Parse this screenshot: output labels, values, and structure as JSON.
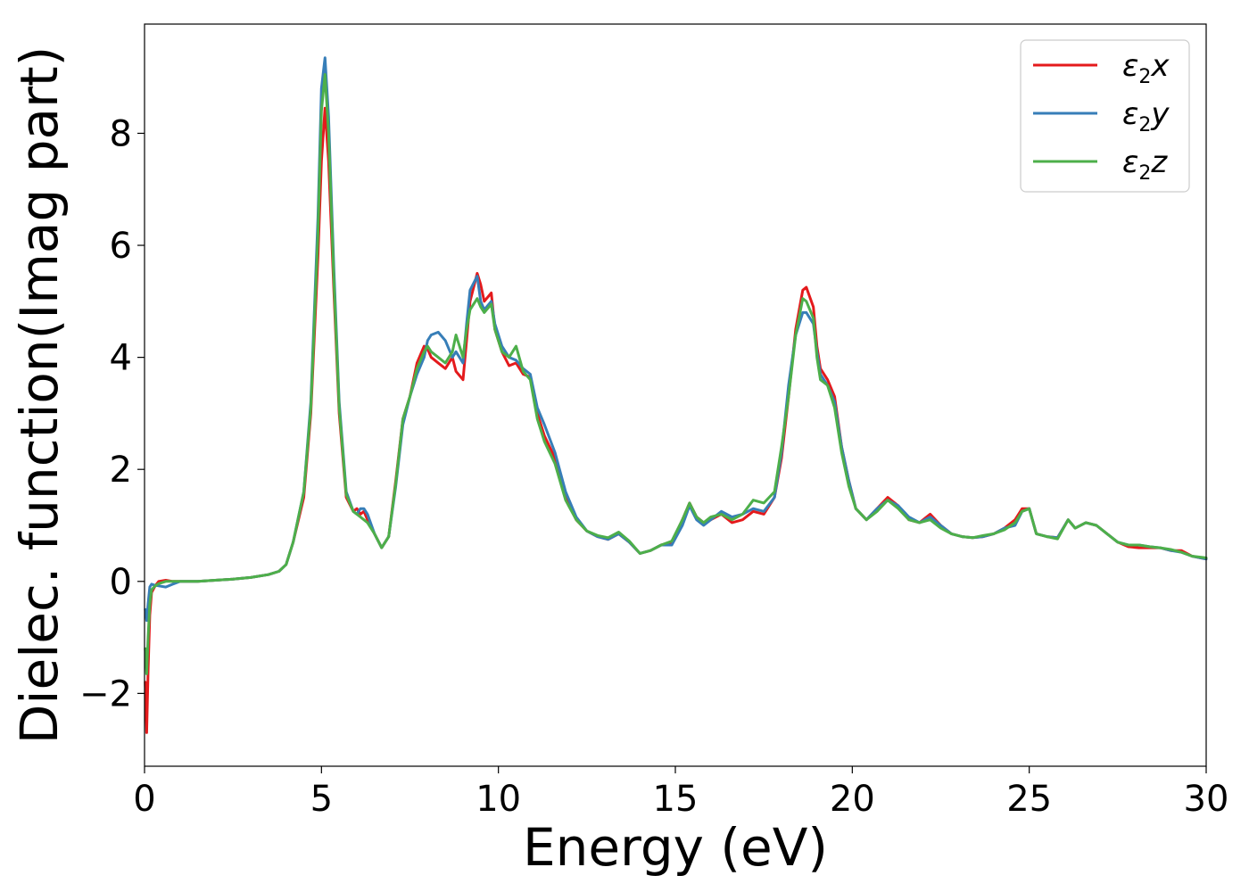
{
  "chart_data": {
    "type": "line",
    "title": "",
    "xlabel": "Energy (eV)",
    "ylabel": "Dielec. function(Imag part)",
    "xlim": [
      0,
      30
    ],
    "ylim": [
      -3.3,
      9.95
    ],
    "xticks": [
      0,
      5,
      10,
      15,
      20,
      25,
      30
    ],
    "xtick_labels": [
      "0",
      "5",
      "10",
      "15",
      "20",
      "25",
      "30"
    ],
    "yticks": [
      -2,
      0,
      2,
      4,
      6,
      8
    ],
    "ytick_labels": [
      "−2",
      "0",
      "2",
      "4",
      "6",
      "8"
    ],
    "grid": false,
    "legend_position": "top-right",
    "series": [
      {
        "name": "ε₂x",
        "legend": {
          "symbol": "ε",
          "sub": "2",
          "suffix": "x"
        },
        "color": "#e41a1c",
        "x": [
          0.02,
          0.06,
          0.1,
          0.15,
          0.2,
          0.3,
          0.4,
          0.6,
          0.8,
          1.0,
          1.5,
          2.0,
          2.5,
          3.0,
          3.5,
          3.8,
          4.0,
          4.2,
          4.5,
          4.7,
          4.9,
          5.0,
          5.1,
          5.2,
          5.35,
          5.5,
          5.7,
          5.9,
          6.0,
          6.1,
          6.2,
          6.3,
          6.5,
          6.7,
          6.9,
          7.1,
          7.3,
          7.5,
          7.7,
          7.9,
          8.0,
          8.1,
          8.3,
          8.5,
          8.7,
          8.8,
          9.0,
          9.1,
          9.2,
          9.4,
          9.5,
          9.6,
          9.8,
          9.9,
          10.1,
          10.3,
          10.5,
          10.7,
          10.9,
          11.1,
          11.3,
          11.6,
          11.9,
          12.2,
          12.5,
          12.8,
          13.1,
          13.4,
          13.7,
          14.0,
          14.3,
          14.6,
          14.9,
          15.2,
          15.4,
          15.6,
          15.8,
          16.0,
          16.3,
          16.6,
          16.9,
          17.2,
          17.5,
          17.8,
          18.0,
          18.2,
          18.4,
          18.6,
          18.7,
          18.9,
          19.0,
          19.1,
          19.3,
          19.5,
          19.7,
          19.9,
          20.1,
          20.4,
          20.7,
          21.0,
          21.3,
          21.6,
          21.9,
          22.2,
          22.5,
          22.8,
          23.1,
          23.4,
          23.7,
          24.0,
          24.3,
          24.6,
          24.8,
          25.0,
          25.2,
          25.5,
          25.8,
          26.1,
          26.3,
          26.6,
          26.9,
          27.2,
          27.5,
          27.8,
          28.1,
          28.4,
          28.7,
          29.0,
          29.3,
          29.6,
          30.0
        ],
        "values": [
          -1.8,
          -2.7,
          -1.6,
          -0.6,
          -0.2,
          -0.08,
          0.0,
          0.02,
          0.0,
          0.0,
          0.0,
          0.02,
          0.04,
          0.07,
          0.12,
          0.18,
          0.3,
          0.7,
          1.5,
          3.0,
          5.8,
          7.5,
          8.45,
          7.5,
          5.2,
          3.0,
          1.5,
          1.25,
          1.3,
          1.2,
          1.25,
          1.1,
          0.85,
          0.6,
          0.8,
          1.8,
          2.9,
          3.3,
          3.9,
          4.2,
          4.15,
          4.0,
          3.9,
          3.8,
          4.0,
          3.75,
          3.6,
          4.3,
          5.0,
          5.5,
          5.3,
          5.0,
          5.15,
          4.5,
          4.1,
          3.85,
          3.9,
          3.7,
          3.65,
          3.0,
          2.6,
          2.2,
          1.5,
          1.1,
          0.9,
          0.8,
          0.75,
          0.85,
          0.7,
          0.5,
          0.55,
          0.65,
          0.7,
          1.1,
          1.4,
          1.15,
          1.05,
          1.1,
          1.2,
          1.05,
          1.1,
          1.25,
          1.2,
          1.5,
          2.2,
          3.3,
          4.5,
          5.2,
          5.25,
          4.9,
          4.2,
          3.8,
          3.6,
          3.3,
          2.4,
          1.8,
          1.3,
          1.1,
          1.3,
          1.5,
          1.35,
          1.1,
          1.05,
          1.2,
          1.0,
          0.85,
          0.8,
          0.78,
          0.8,
          0.85,
          0.95,
          1.1,
          1.3,
          1.3,
          0.85,
          0.8,
          0.78,
          1.1,
          0.95,
          1.05,
          1.0,
          0.85,
          0.7,
          0.62,
          0.6,
          0.6,
          0.6,
          0.55,
          0.55,
          0.45,
          0.4
        ]
      },
      {
        "name": "ε₂y",
        "legend": {
          "symbol": "ε",
          "sub": "2",
          "suffix": "y"
        },
        "color": "#377eb8",
        "x": [
          0.02,
          0.06,
          0.1,
          0.15,
          0.2,
          0.3,
          0.4,
          0.6,
          0.8,
          1.0,
          1.5,
          2.0,
          2.5,
          3.0,
          3.5,
          3.8,
          4.0,
          4.2,
          4.5,
          4.7,
          4.9,
          5.0,
          5.1,
          5.2,
          5.35,
          5.5,
          5.7,
          5.9,
          6.0,
          6.1,
          6.2,
          6.3,
          6.5,
          6.7,
          6.9,
          7.1,
          7.3,
          7.5,
          7.7,
          7.9,
          8.0,
          8.1,
          8.3,
          8.5,
          8.7,
          8.8,
          9.0,
          9.1,
          9.2,
          9.4,
          9.5,
          9.6,
          9.8,
          9.9,
          10.1,
          10.3,
          10.5,
          10.7,
          10.9,
          11.1,
          11.3,
          11.6,
          11.9,
          12.2,
          12.5,
          12.8,
          13.1,
          13.4,
          13.7,
          14.0,
          14.3,
          14.6,
          14.9,
          15.2,
          15.4,
          15.6,
          15.8,
          16.0,
          16.3,
          16.6,
          16.9,
          17.2,
          17.5,
          17.8,
          18.0,
          18.2,
          18.4,
          18.6,
          18.7,
          18.9,
          19.0,
          19.1,
          19.3,
          19.5,
          19.7,
          19.9,
          20.1,
          20.4,
          20.7,
          21.0,
          21.3,
          21.6,
          21.9,
          22.2,
          22.5,
          22.8,
          23.1,
          23.4,
          23.7,
          24.0,
          24.3,
          24.6,
          24.8,
          25.0,
          25.2,
          25.5,
          25.8,
          26.1,
          26.3,
          26.6,
          26.9,
          27.2,
          27.5,
          27.8,
          28.1,
          28.4,
          28.7,
          29.0,
          29.3,
          29.6,
          30.0
        ],
        "values": [
          -0.5,
          -0.7,
          -0.4,
          -0.1,
          -0.05,
          -0.07,
          -0.08,
          -0.1,
          -0.05,
          0.0,
          0.0,
          0.02,
          0.04,
          0.07,
          0.12,
          0.18,
          0.3,
          0.7,
          1.6,
          3.2,
          6.5,
          8.8,
          9.35,
          8.3,
          5.6,
          3.2,
          1.6,
          1.25,
          1.2,
          1.3,
          1.3,
          1.2,
          0.85,
          0.6,
          0.8,
          1.7,
          2.8,
          3.3,
          3.7,
          4.0,
          4.3,
          4.4,
          4.45,
          4.3,
          4.0,
          4.1,
          3.9,
          4.6,
          5.2,
          5.45,
          5.0,
          4.85,
          5.0,
          4.6,
          4.2,
          4.0,
          3.95,
          3.8,
          3.7,
          3.1,
          2.8,
          2.3,
          1.6,
          1.15,
          0.9,
          0.8,
          0.75,
          0.85,
          0.7,
          0.5,
          0.55,
          0.65,
          0.65,
          1.0,
          1.35,
          1.1,
          1.0,
          1.1,
          1.25,
          1.15,
          1.2,
          1.3,
          1.25,
          1.5,
          2.3,
          3.5,
          4.4,
          4.8,
          4.8,
          4.6,
          4.1,
          3.7,
          3.5,
          3.2,
          2.4,
          1.8,
          1.3,
          1.1,
          1.3,
          1.45,
          1.35,
          1.15,
          1.05,
          1.15,
          1.0,
          0.85,
          0.8,
          0.78,
          0.8,
          0.85,
          0.95,
          1.0,
          1.25,
          1.3,
          0.85,
          0.8,
          0.78,
          1.1,
          0.95,
          1.05,
          1.0,
          0.85,
          0.7,
          0.65,
          0.65,
          0.62,
          0.6,
          0.55,
          0.52,
          0.45,
          0.4
        ]
      },
      {
        "name": "ε₂z",
        "legend": {
          "symbol": "ε",
          "sub": "2",
          "suffix": "z"
        },
        "color": "#4daf4a",
        "x": [
          0.02,
          0.06,
          0.1,
          0.15,
          0.2,
          0.3,
          0.4,
          0.6,
          0.8,
          1.0,
          1.5,
          2.0,
          2.5,
          3.0,
          3.5,
          3.8,
          4.0,
          4.2,
          4.5,
          4.7,
          4.9,
          5.0,
          5.1,
          5.2,
          5.35,
          5.5,
          5.7,
          5.9,
          6.0,
          6.1,
          6.2,
          6.3,
          6.5,
          6.7,
          6.9,
          7.1,
          7.3,
          7.5,
          7.7,
          7.9,
          8.0,
          8.1,
          8.3,
          8.5,
          8.7,
          8.8,
          9.0,
          9.1,
          9.2,
          9.4,
          9.5,
          9.6,
          9.8,
          9.9,
          10.1,
          10.3,
          10.5,
          10.7,
          10.9,
          11.1,
          11.3,
          11.6,
          11.9,
          12.2,
          12.5,
          12.8,
          13.1,
          13.4,
          13.7,
          14.0,
          14.3,
          14.6,
          14.9,
          15.2,
          15.4,
          15.6,
          15.8,
          16.0,
          16.3,
          16.6,
          16.9,
          17.2,
          17.5,
          17.8,
          18.0,
          18.2,
          18.4,
          18.6,
          18.7,
          18.9,
          19.0,
          19.1,
          19.3,
          19.5,
          19.7,
          19.9,
          20.1,
          20.4,
          20.7,
          21.0,
          21.3,
          21.6,
          21.9,
          22.2,
          22.5,
          22.8,
          23.1,
          23.4,
          23.7,
          24.0,
          24.3,
          24.6,
          24.8,
          25.0,
          25.2,
          25.5,
          25.8,
          26.1,
          26.3,
          26.6,
          26.9,
          27.2,
          27.5,
          27.8,
          28.1,
          28.4,
          28.7,
          29.0,
          29.3,
          29.6,
          30.0
        ],
        "values": [
          -1.2,
          -1.65,
          -1.0,
          -0.4,
          -0.15,
          -0.08,
          -0.04,
          0.0,
          0.0,
          0.0,
          0.0,
          0.02,
          0.04,
          0.07,
          0.12,
          0.18,
          0.3,
          0.7,
          1.6,
          3.1,
          6.2,
          8.4,
          9.05,
          8.0,
          5.4,
          3.1,
          1.55,
          1.25,
          1.2,
          1.15,
          1.1,
          1.05,
          0.85,
          0.6,
          0.8,
          1.75,
          2.9,
          3.3,
          3.8,
          4.1,
          4.2,
          4.1,
          4.0,
          3.9,
          4.1,
          4.4,
          4.0,
          4.5,
          4.85,
          5.05,
          4.9,
          4.8,
          4.95,
          4.5,
          4.1,
          4.0,
          4.2,
          3.75,
          3.6,
          2.9,
          2.5,
          2.1,
          1.45,
          1.1,
          0.9,
          0.82,
          0.78,
          0.88,
          0.72,
          0.5,
          0.55,
          0.65,
          0.72,
          1.1,
          1.4,
          1.15,
          1.05,
          1.15,
          1.2,
          1.1,
          1.2,
          1.45,
          1.4,
          1.6,
          2.4,
          3.3,
          4.4,
          5.05,
          5.0,
          4.7,
          4.0,
          3.6,
          3.5,
          3.1,
          2.3,
          1.7,
          1.3,
          1.1,
          1.25,
          1.45,
          1.3,
          1.1,
          1.05,
          1.1,
          0.95,
          0.85,
          0.8,
          0.78,
          0.82,
          0.85,
          0.92,
          1.05,
          1.25,
          1.3,
          0.85,
          0.8,
          0.76,
          1.1,
          0.95,
          1.05,
          1.0,
          0.85,
          0.7,
          0.65,
          0.65,
          0.62,
          0.6,
          0.57,
          0.52,
          0.45,
          0.42
        ]
      }
    ]
  }
}
